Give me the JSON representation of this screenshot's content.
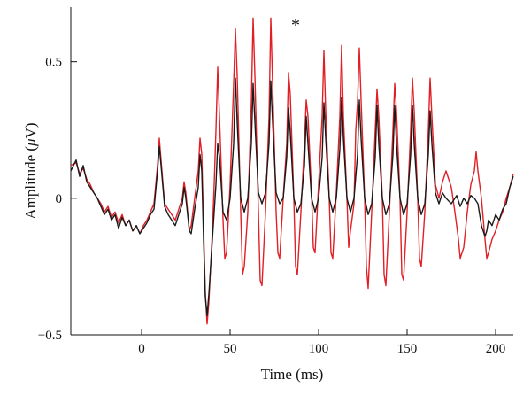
{
  "chart_data": {
    "type": "line",
    "title": "",
    "xlabel": "Time (ms)",
    "ylabel_prefix": "Amplitude (",
    "ylabel_unit_italic": "μ",
    "ylabel_suffix": "V)",
    "xlim": [
      -40,
      210
    ],
    "ylim": [
      -0.5,
      0.7
    ],
    "x_ticks": [
      0,
      50,
      100,
      150,
      200
    ],
    "x_tick_labels": [
      "0",
      "50",
      "100",
      "150",
      "200"
    ],
    "y_ticks": [
      -0.5,
      0,
      0.5
    ],
    "y_tick_labels": [
      "−0.5",
      "0",
      "0.5"
    ],
    "grid": false,
    "legend": "none",
    "annotations": [
      {
        "text": "*",
        "x": 87,
        "y": 0.64
      }
    ],
    "series": [
      {
        "color": "#e11f26",
        "points": [
          [
            -40,
            0.12
          ],
          [
            -37,
            0.13
          ],
          [
            -35,
            0.09
          ],
          [
            -33,
            0.11
          ],
          [
            -31,
            0.07
          ],
          [
            -29,
            0.05
          ],
          [
            -27,
            0.02
          ],
          [
            -25,
            0.0
          ],
          [
            -23,
            -0.02
          ],
          [
            -21,
            -0.05
          ],
          [
            -19,
            -0.03
          ],
          [
            -17,
            -0.07
          ],
          [
            -15,
            -0.05
          ],
          [
            -13,
            -0.09
          ],
          [
            -11,
            -0.06
          ],
          [
            -9,
            -0.1
          ],
          [
            -7,
            -0.08
          ],
          [
            -5,
            -0.12
          ],
          [
            -3,
            -0.1
          ],
          [
            -1,
            -0.13
          ],
          [
            1,
            -0.1
          ],
          [
            3,
            -0.08
          ],
          [
            5,
            -0.05
          ],
          [
            7,
            -0.02
          ],
          [
            9,
            0.12
          ],
          [
            10,
            0.22
          ],
          [
            11,
            0.14
          ],
          [
            13,
            -0.02
          ],
          [
            15,
            -0.04
          ],
          [
            17,
            -0.06
          ],
          [
            19,
            -0.08
          ],
          [
            21,
            -0.04
          ],
          [
            23,
            0.0
          ],
          [
            24,
            0.06
          ],
          [
            25,
            0.02
          ],
          [
            27,
            -0.12
          ],
          [
            28,
            -0.1
          ],
          [
            30,
            0.0
          ],
          [
            32,
            0.1
          ],
          [
            33,
            0.22
          ],
          [
            34,
            0.16
          ],
          [
            35,
            -0.1
          ],
          [
            36,
            -0.35
          ],
          [
            37,
            -0.46
          ],
          [
            38,
            -0.38
          ],
          [
            40,
            -0.12
          ],
          [
            41,
            0.05
          ],
          [
            42,
            0.25
          ],
          [
            43,
            0.48
          ],
          [
            44,
            0.3
          ],
          [
            46,
            -0.08
          ],
          [
            47,
            -0.22
          ],
          [
            48,
            -0.2
          ],
          [
            50,
            0.05
          ],
          [
            52,
            0.42
          ],
          [
            53,
            0.62
          ],
          [
            54,
            0.45
          ],
          [
            56,
            -0.05
          ],
          [
            57,
            -0.28
          ],
          [
            58,
            -0.25
          ],
          [
            60,
            -0.05
          ],
          [
            62,
            0.35
          ],
          [
            63,
            0.66
          ],
          [
            64,
            0.45
          ],
          [
            66,
            -0.05
          ],
          [
            67,
            -0.3
          ],
          [
            68,
            -0.32
          ],
          [
            70,
            -0.05
          ],
          [
            72,
            0.3
          ],
          [
            73,
            0.66
          ],
          [
            74,
            0.42
          ],
          [
            76,
            -0.05
          ],
          [
            77,
            -0.2
          ],
          [
            78,
            -0.22
          ],
          [
            80,
            0.0
          ],
          [
            82,
            0.2
          ],
          [
            83,
            0.46
          ],
          [
            84,
            0.38
          ],
          [
            86,
            0.0
          ],
          [
            87,
            -0.25
          ],
          [
            88,
            -0.28
          ],
          [
            90,
            -0.05
          ],
          [
            92,
            0.2
          ],
          [
            93,
            0.36
          ],
          [
            94,
            0.3
          ],
          [
            96,
            0.02
          ],
          [
            97,
            -0.18
          ],
          [
            98,
            -0.2
          ],
          [
            100,
            0.05
          ],
          [
            102,
            0.3
          ],
          [
            103,
            0.54
          ],
          [
            104,
            0.32
          ],
          [
            106,
            0.0
          ],
          [
            107,
            -0.2
          ],
          [
            108,
            -0.22
          ],
          [
            110,
            0.02
          ],
          [
            112,
            0.3
          ],
          [
            113,
            0.56
          ],
          [
            114,
            0.3
          ],
          [
            116,
            0.0
          ],
          [
            117,
            -0.18
          ],
          [
            118,
            -0.12
          ],
          [
            120,
            -0.02
          ],
          [
            121,
            0.25
          ],
          [
            122,
            0.35
          ],
          [
            123,
            0.55
          ],
          [
            124,
            0.36
          ],
          [
            126,
            0.0
          ],
          [
            127,
            -0.25
          ],
          [
            128,
            -0.33
          ],
          [
            130,
            -0.05
          ],
          [
            132,
            0.25
          ],
          [
            133,
            0.4
          ],
          [
            134,
            0.3
          ],
          [
            136,
            0.0
          ],
          [
            137,
            -0.28
          ],
          [
            138,
            -0.32
          ],
          [
            140,
            -0.05
          ],
          [
            142,
            0.25
          ],
          [
            143,
            0.42
          ],
          [
            144,
            0.32
          ],
          [
            146,
            0.0
          ],
          [
            147,
            -0.28
          ],
          [
            148,
            -0.3
          ],
          [
            150,
            -0.05
          ],
          [
            152,
            0.25
          ],
          [
            153,
            0.44
          ],
          [
            154,
            0.32
          ],
          [
            156,
            0.0
          ],
          [
            157,
            -0.22
          ],
          [
            158,
            -0.25
          ],
          [
            160,
            -0.05
          ],
          [
            162,
            0.25
          ],
          [
            163,
            0.44
          ],
          [
            164,
            0.3
          ],
          [
            166,
            0.05
          ],
          [
            168,
            0.0
          ],
          [
            170,
            0.06
          ],
          [
            172,
            0.1
          ],
          [
            175,
            0.04
          ],
          [
            177,
            -0.05
          ],
          [
            179,
            -0.15
          ],
          [
            180,
            -0.22
          ],
          [
            182,
            -0.18
          ],
          [
            184,
            -0.05
          ],
          [
            186,
            0.05
          ],
          [
            188,
            0.1
          ],
          [
            189,
            0.17
          ],
          [
            190,
            0.1
          ],
          [
            192,
            0.0
          ],
          [
            194,
            -0.15
          ],
          [
            195,
            -0.22
          ],
          [
            196,
            -0.2
          ],
          [
            198,
            -0.15
          ],
          [
            200,
            -0.12
          ],
          [
            202,
            -0.08
          ],
          [
            204,
            -0.05
          ],
          [
            206,
            0.0
          ],
          [
            208,
            0.04
          ],
          [
            210,
            0.09
          ]
        ]
      },
      {
        "color": "#1a1a1a",
        "points": [
          [
            -40,
            0.1
          ],
          [
            -37,
            0.14
          ],
          [
            -35,
            0.08
          ],
          [
            -33,
            0.12
          ],
          [
            -31,
            0.06
          ],
          [
            -29,
            0.04
          ],
          [
            -27,
            0.02
          ],
          [
            -25,
            0.0
          ],
          [
            -23,
            -0.03
          ],
          [
            -21,
            -0.06
          ],
          [
            -19,
            -0.04
          ],
          [
            -17,
            -0.08
          ],
          [
            -15,
            -0.06
          ],
          [
            -13,
            -0.11
          ],
          [
            -11,
            -0.07
          ],
          [
            -9,
            -0.1
          ],
          [
            -7,
            -0.08
          ],
          [
            -5,
            -0.12
          ],
          [
            -3,
            -0.1
          ],
          [
            -1,
            -0.13
          ],
          [
            1,
            -0.11
          ],
          [
            3,
            -0.09
          ],
          [
            5,
            -0.06
          ],
          [
            7,
            -0.04
          ],
          [
            9,
            0.1
          ],
          [
            10,
            0.19
          ],
          [
            11,
            0.12
          ],
          [
            13,
            -0.03
          ],
          [
            15,
            -0.06
          ],
          [
            17,
            -0.08
          ],
          [
            19,
            -0.1
          ],
          [
            21,
            -0.06
          ],
          [
            23,
            -0.02
          ],
          [
            24,
            0.04
          ],
          [
            25,
            0.0
          ],
          [
            27,
            -0.12
          ],
          [
            28,
            -0.13
          ],
          [
            30,
            -0.04
          ],
          [
            32,
            0.04
          ],
          [
            33,
            0.16
          ],
          [
            34,
            0.1
          ],
          [
            35,
            -0.15
          ],
          [
            36,
            -0.36
          ],
          [
            37,
            -0.43
          ],
          [
            38,
            -0.35
          ],
          [
            40,
            -0.15
          ],
          [
            42,
            0.05
          ],
          [
            43,
            0.2
          ],
          [
            44,
            0.15
          ],
          [
            46,
            -0.05
          ],
          [
            48,
            -0.08
          ],
          [
            50,
            0.0
          ],
          [
            52,
            0.2
          ],
          [
            53,
            0.44
          ],
          [
            54,
            0.28
          ],
          [
            56,
            0.0
          ],
          [
            58,
            -0.05
          ],
          [
            60,
            0.0
          ],
          [
            62,
            0.2
          ],
          [
            63,
            0.42
          ],
          [
            64,
            0.28
          ],
          [
            66,
            0.02
          ],
          [
            68,
            -0.02
          ],
          [
            70,
            0.02
          ],
          [
            72,
            0.2
          ],
          [
            73,
            0.43
          ],
          [
            74,
            0.28
          ],
          [
            76,
            0.02
          ],
          [
            78,
            -0.02
          ],
          [
            80,
            0.0
          ],
          [
            82,
            0.15
          ],
          [
            83,
            0.33
          ],
          [
            84,
            0.24
          ],
          [
            86,
            0.0
          ],
          [
            88,
            -0.05
          ],
          [
            90,
            -0.02
          ],
          [
            92,
            0.12
          ],
          [
            93,
            0.3
          ],
          [
            94,
            0.2
          ],
          [
            96,
            0.0
          ],
          [
            98,
            -0.05
          ],
          [
            100,
            0.0
          ],
          [
            102,
            0.15
          ],
          [
            103,
            0.35
          ],
          [
            104,
            0.22
          ],
          [
            106,
            0.0
          ],
          [
            108,
            -0.05
          ],
          [
            110,
            0.0
          ],
          [
            112,
            0.18
          ],
          [
            113,
            0.37
          ],
          [
            114,
            0.22
          ],
          [
            116,
            0.0
          ],
          [
            118,
            -0.05
          ],
          [
            120,
            0.0
          ],
          [
            122,
            0.16
          ],
          [
            123,
            0.36
          ],
          [
            124,
            0.22
          ],
          [
            126,
            0.0
          ],
          [
            128,
            -0.06
          ],
          [
            130,
            -0.02
          ],
          [
            132,
            0.15
          ],
          [
            133,
            0.34
          ],
          [
            134,
            0.2
          ],
          [
            136,
            0.0
          ],
          [
            138,
            -0.06
          ],
          [
            140,
            -0.02
          ],
          [
            142,
            0.16
          ],
          [
            143,
            0.34
          ],
          [
            144,
            0.2
          ],
          [
            146,
            0.0
          ],
          [
            148,
            -0.06
          ],
          [
            150,
            -0.02
          ],
          [
            152,
            0.16
          ],
          [
            153,
            0.34
          ],
          [
            154,
            0.2
          ],
          [
            156,
            0.0
          ],
          [
            158,
            -0.06
          ],
          [
            160,
            -0.02
          ],
          [
            162,
            0.16
          ],
          [
            163,
            0.32
          ],
          [
            164,
            0.2
          ],
          [
            166,
            0.02
          ],
          [
            168,
            -0.02
          ],
          [
            170,
            0.02
          ],
          [
            172,
            0.0
          ],
          [
            175,
            -0.02
          ],
          [
            178,
            0.01
          ],
          [
            180,
            -0.03
          ],
          [
            182,
            0.0
          ],
          [
            184,
            -0.02
          ],
          [
            186,
            0.01
          ],
          [
            188,
            0.0
          ],
          [
            190,
            -0.02
          ],
          [
            192,
            -0.1
          ],
          [
            194,
            -0.14
          ],
          [
            195,
            -0.12
          ],
          [
            196,
            -0.08
          ],
          [
            198,
            -0.1
          ],
          [
            200,
            -0.06
          ],
          [
            202,
            -0.08
          ],
          [
            204,
            -0.04
          ],
          [
            206,
            -0.02
          ],
          [
            208,
            0.04
          ],
          [
            210,
            0.08
          ]
        ]
      }
    ]
  }
}
